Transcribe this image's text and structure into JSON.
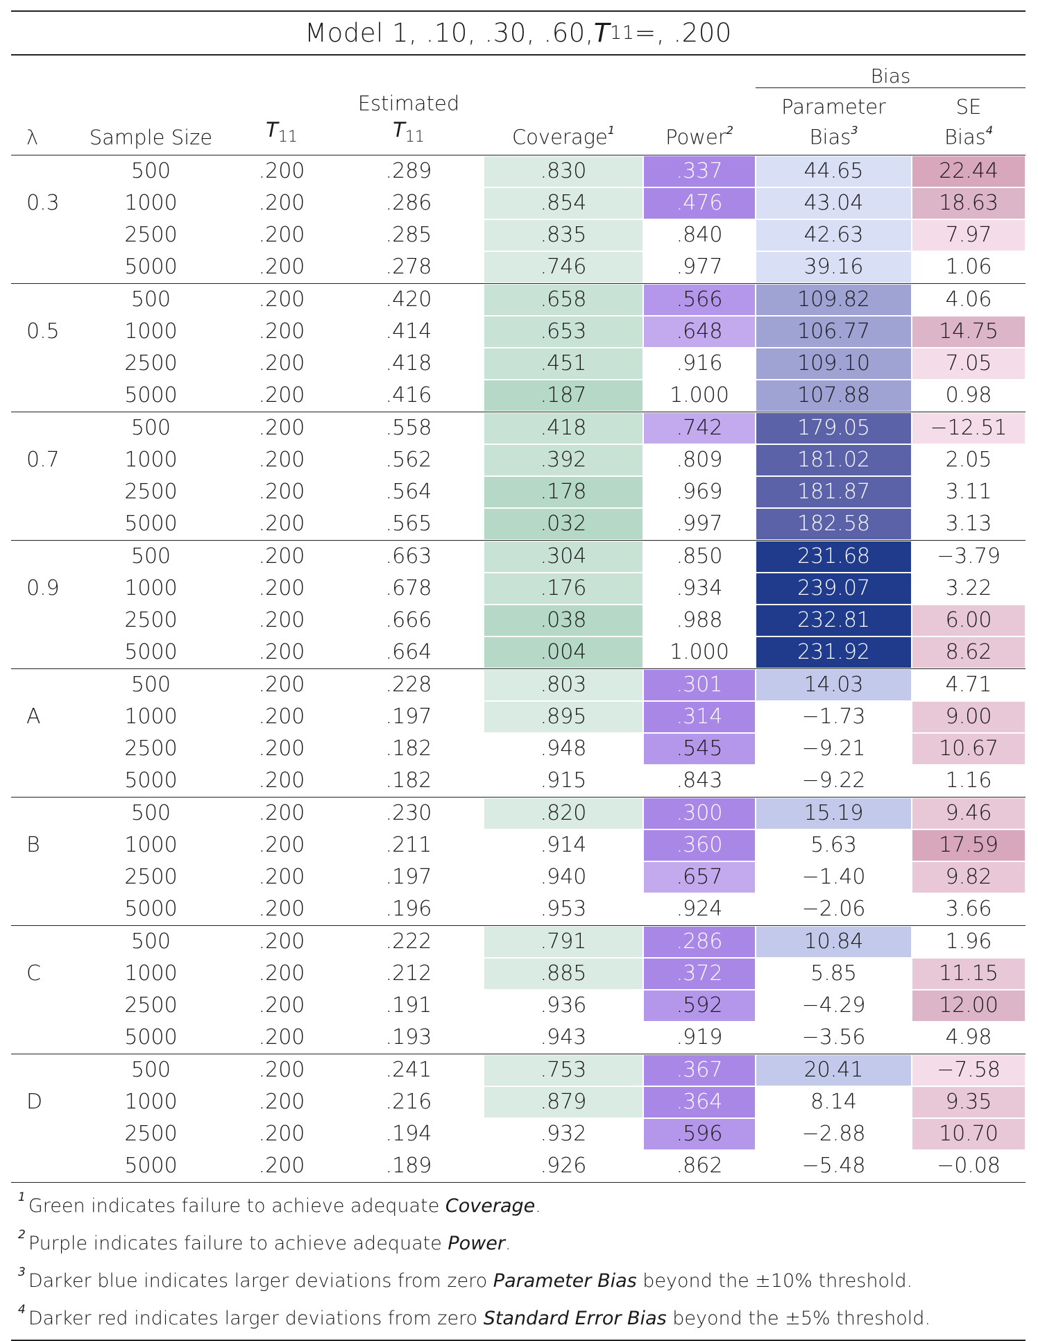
{
  "title": {
    "prefix": "Model 1, .10, .30, .60, ",
    "var": "T",
    "sub": "11",
    "suffix": " =, .200"
  },
  "header": {
    "bias_group": "Bias",
    "col_lambda": "λ",
    "col_sample": "Sample Size",
    "col_t_var": "T",
    "col_t_sub": "11",
    "col_est_line1": "Estimated",
    "col_est_var": "T",
    "col_est_sub": "11",
    "col_coverage": "Coverage",
    "col_coverage_fn": "1",
    "col_power": "Power",
    "col_power_fn": "2",
    "col_param_line1": "Parameter",
    "col_param_line2": "Bias",
    "col_param_fn": "3",
    "col_se_line1": "SE",
    "col_se_line2": "Bias",
    "col_se_fn": "4"
  },
  "groups": [
    {
      "lambda": "0.3",
      "rows": [
        {
          "n": "500",
          "t": ".200",
          "est": ".289",
          "cov": ".830",
          "pow": ".337",
          "pb": "44.65",
          "se": "22.44"
        },
        {
          "n": "1000",
          "t": ".200",
          "est": ".286",
          "cov": ".854",
          "pow": ".476",
          "pb": "43.04",
          "se": "18.63"
        },
        {
          "n": "2500",
          "t": ".200",
          "est": ".285",
          "cov": ".835",
          "pow": ".840",
          "pb": "42.63",
          "se": "7.97"
        },
        {
          "n": "5000",
          "t": ".200",
          "est": ".278",
          "cov": ".746",
          "pow": ".977",
          "pb": "39.16",
          "se": "1.06"
        }
      ]
    },
    {
      "lambda": "0.5",
      "rows": [
        {
          "n": "500",
          "t": ".200",
          "est": ".420",
          "cov": ".658",
          "pow": ".566",
          "pb": "109.82",
          "se": "4.06"
        },
        {
          "n": "1000",
          "t": ".200",
          "est": ".414",
          "cov": ".653",
          "pow": ".648",
          "pb": "106.77",
          "se": "14.75"
        },
        {
          "n": "2500",
          "t": ".200",
          "est": ".418",
          "cov": ".451",
          "pow": ".916",
          "pb": "109.10",
          "se": "7.05"
        },
        {
          "n": "5000",
          "t": ".200",
          "est": ".416",
          "cov": ".187",
          "pow": "1.000",
          "pb": "107.88",
          "se": "0.98"
        }
      ]
    },
    {
      "lambda": "0.7",
      "rows": [
        {
          "n": "500",
          "t": ".200",
          "est": ".558",
          "cov": ".418",
          "pow": ".742",
          "pb": "179.05",
          "se": "−12.51"
        },
        {
          "n": "1000",
          "t": ".200",
          "est": ".562",
          "cov": ".392",
          "pow": ".809",
          "pb": "181.02",
          "se": "2.05"
        },
        {
          "n": "2500",
          "t": ".200",
          "est": ".564",
          "cov": ".178",
          "pow": ".969",
          "pb": "181.87",
          "se": "3.11"
        },
        {
          "n": "5000",
          "t": ".200",
          "est": ".565",
          "cov": ".032",
          "pow": ".997",
          "pb": "182.58",
          "se": "3.13"
        }
      ]
    },
    {
      "lambda": "0.9",
      "rows": [
        {
          "n": "500",
          "t": ".200",
          "est": ".663",
          "cov": ".304",
          "pow": ".850",
          "pb": "231.68",
          "se": "−3.79"
        },
        {
          "n": "1000",
          "t": ".200",
          "est": ".678",
          "cov": ".176",
          "pow": ".934",
          "pb": "239.07",
          "se": "3.22"
        },
        {
          "n": "2500",
          "t": ".200",
          "est": ".666",
          "cov": ".038",
          "pow": ".988",
          "pb": "232.81",
          "se": "6.00"
        },
        {
          "n": "5000",
          "t": ".200",
          "est": ".664",
          "cov": ".004",
          "pow": "1.000",
          "pb": "231.92",
          "se": "8.62"
        }
      ]
    },
    {
      "lambda": "A",
      "rows": [
        {
          "n": "500",
          "t": ".200",
          "est": ".228",
          "cov": ".803",
          "pow": ".301",
          "pb": "14.03",
          "se": "4.71"
        },
        {
          "n": "1000",
          "t": ".200",
          "est": ".197",
          "cov": ".895",
          "pow": ".314",
          "pb": "−1.73",
          "se": "9.00"
        },
        {
          "n": "2500",
          "t": ".200",
          "est": ".182",
          "cov": ".948",
          "pow": ".545",
          "pb": "−9.21",
          "se": "10.67"
        },
        {
          "n": "5000",
          "t": ".200",
          "est": ".182",
          "cov": ".915",
          "pow": ".843",
          "pb": "−9.22",
          "se": "1.16"
        }
      ]
    },
    {
      "lambda": "B",
      "rows": [
        {
          "n": "500",
          "t": ".200",
          "est": ".230",
          "cov": ".820",
          "pow": ".300",
          "pb": "15.19",
          "se": "9.46"
        },
        {
          "n": "1000",
          "t": ".200",
          "est": ".211",
          "cov": ".914",
          "pow": ".360",
          "pb": "5.63",
          "se": "17.59"
        },
        {
          "n": "2500",
          "t": ".200",
          "est": ".197",
          "cov": ".940",
          "pow": ".657",
          "pb": "−1.40",
          "se": "9.82"
        },
        {
          "n": "5000",
          "t": ".200",
          "est": ".196",
          "cov": ".953",
          "pow": ".924",
          "pb": "−2.06",
          "se": "3.66"
        }
      ]
    },
    {
      "lambda": "C",
      "rows": [
        {
          "n": "500",
          "t": ".200",
          "est": ".222",
          "cov": ".791",
          "pow": ".286",
          "pb": "10.84",
          "se": "1.96"
        },
        {
          "n": "1000",
          "t": ".200",
          "est": ".212",
          "cov": ".885",
          "pow": ".372",
          "pb": "5.85",
          "se": "11.15"
        },
        {
          "n": "2500",
          "t": ".200",
          "est": ".191",
          "cov": ".936",
          "pow": ".592",
          "pb": "−4.29",
          "se": "12.00"
        },
        {
          "n": "5000",
          "t": ".200",
          "est": ".193",
          "cov": ".943",
          "pow": ".919",
          "pb": "−3.56",
          "se": "4.98"
        }
      ]
    },
    {
      "lambda": "D",
      "rows": [
        {
          "n": "500",
          "t": ".200",
          "est": ".241",
          "cov": ".753",
          "pow": ".367",
          "pb": "20.41",
          "se": "−7.58"
        },
        {
          "n": "1000",
          "t": ".200",
          "est": ".216",
          "cov": ".879",
          "pow": ".364",
          "pb": "8.14",
          "se": "9.35"
        },
        {
          "n": "2500",
          "t": ".200",
          "est": ".194",
          "cov": ".932",
          "pow": ".596",
          "pb": "−2.88",
          "se": "10.70"
        },
        {
          "n": "5000",
          "t": ".200",
          "est": ".189",
          "cov": ".926",
          "pow": ".862",
          "pb": "−5.48",
          "se": "−0.08"
        }
      ]
    }
  ],
  "footnotes": [
    {
      "mark": "1",
      "pre": "Green indicates failure to achieve adequate ",
      "em": "Coverage",
      "post": "."
    },
    {
      "mark": "2",
      "pre": "Purple indicates failure to achieve adequate ",
      "em": "Power",
      "post": "."
    },
    {
      "mark": "3",
      "pre": "Darker blue indicates larger deviations from zero ",
      "em": "Parameter Bias",
      "post": " beyond the ±10% threshold."
    },
    {
      "mark": "4",
      "pre": "Darker red indicates larger deviations from zero ",
      "em": "Standard Error Bias",
      "post": " beyond the ±5% threshold."
    }
  ],
  "colors": {
    "coverage": "#c8e2d6",
    "power": "#a987e6",
    "param_bias": "#203a8c",
    "se_bias": "#d8a7bc"
  }
}
